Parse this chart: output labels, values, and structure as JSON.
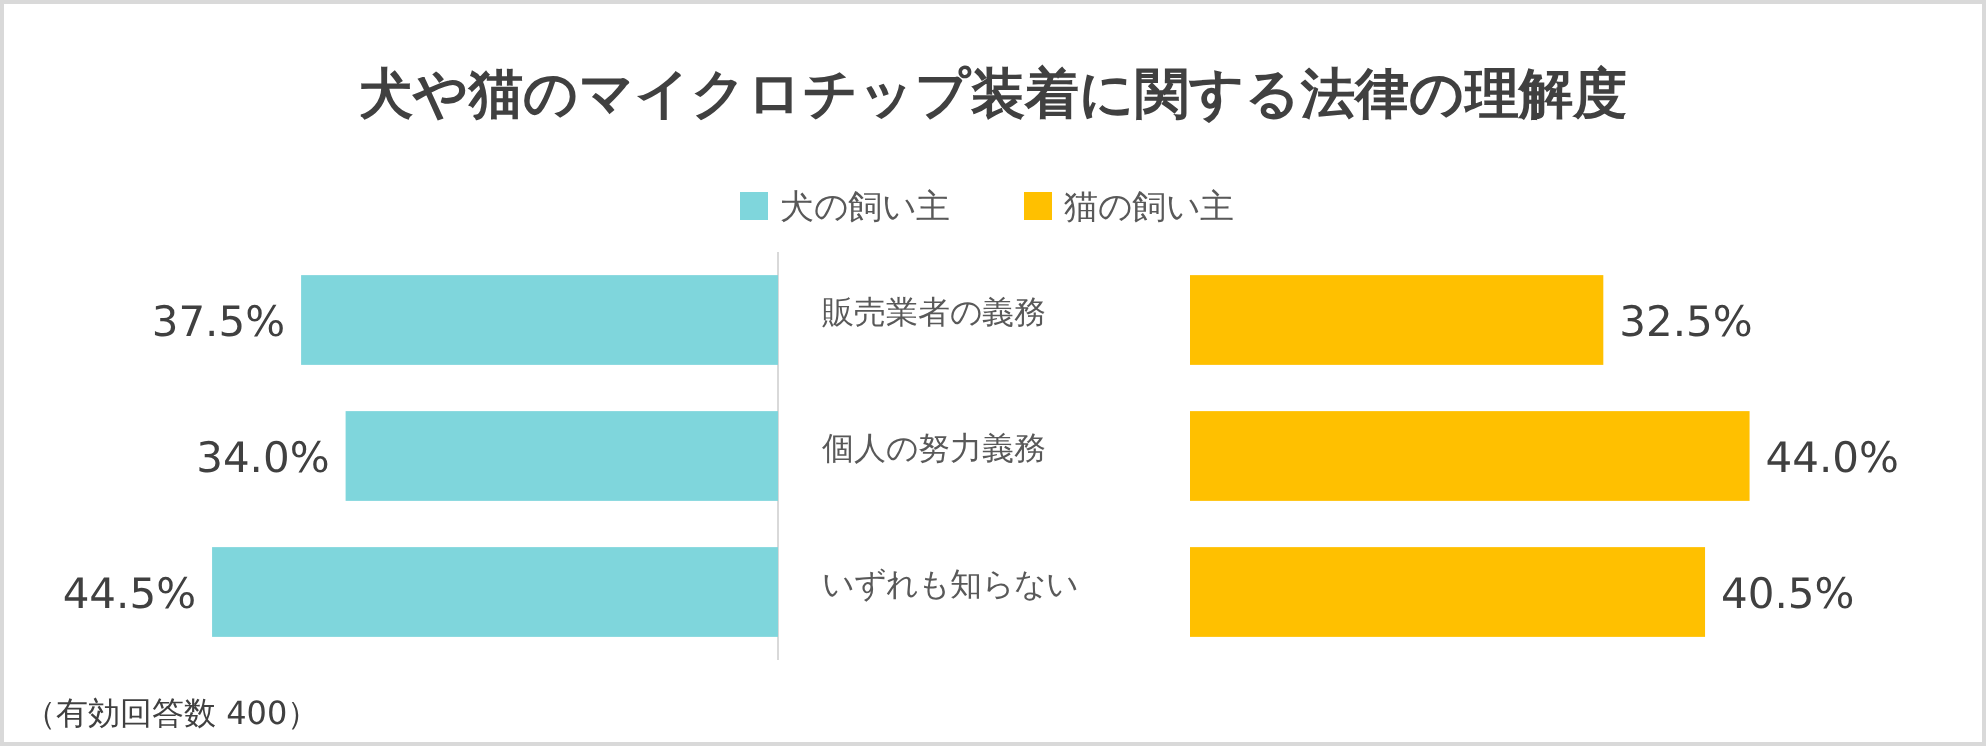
{
  "chart_data": [
    {
      "type": "bar",
      "orientation": "horizontal",
      "title": "犬や猫のマイクロチップ装着に関する法律の理解度",
      "categories": [
        "販売業者の義務",
        "個人の努力義務",
        "いずれも知らない"
      ],
      "series": [
        {
          "name": "犬の飼い主",
          "color": "#7fd6dc",
          "values": [
            37.5,
            34.0,
            44.5
          ],
          "value_labels": [
            "37.5%",
            "34.0%",
            "44.5%"
          ]
        }
      ],
      "legend": "top right",
      "tick_labels": "y",
      "annotations": [
        "（有効回答数 400）"
      ]
    },
    {
      "type": "bar",
      "orientation": "horizontal",
      "categories": [
        null,
        null,
        null
      ],
      "series": [
        {
          "name": "猫の飼い主",
          "color": "#ffc000",
          "values": [
            32.5,
            44.0,
            40.5
          ],
          "value_labels": [
            "32.5%",
            "44.0%",
            "40.5%"
          ]
        }
      ],
      "legend": "top left",
      "tick_labels": false
    }
  ]
}
